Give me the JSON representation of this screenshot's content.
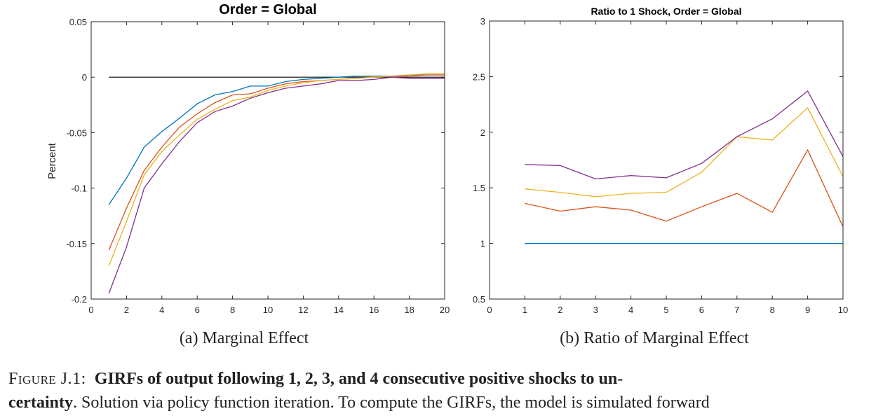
{
  "figure_label": "Figure J.1:",
  "caption_bold": "GIRFs of output following 1, 2, 3, and 4 consecutive positive shocks to un-",
  "caption_bold2": "certainty",
  "caption_rest": ". Solution via policy function iteration. To compute the GIRFs, the model is simulated forward",
  "subcaptions": [
    "(a) Marginal Effect",
    "(b) Ratio of Marginal Effect"
  ],
  "colors": {
    "s1": "#0072BD",
    "s2": "#D95319",
    "s3": "#EDB120",
    "s4": "#7E2F8E",
    "zero": "#000000",
    "axis": "#262626"
  },
  "chart_data": [
    {
      "type": "line",
      "title": "Order = Global",
      "xlabel": "",
      "ylabel": "Percent",
      "xlim": [
        0,
        20
      ],
      "ylim": [
        -0.2,
        0.05
      ],
      "xticks": [
        0,
        2,
        4,
        6,
        8,
        10,
        12,
        14,
        16,
        18,
        20
      ],
      "yticks": [
        -0.2,
        -0.15,
        -0.1,
        -0.05,
        0,
        0.05
      ],
      "ytick_labels": [
        "-0.2",
        "-0.15",
        "-0.1",
        "-0.05",
        "0",
        "0.05"
      ],
      "grid": false,
      "zero_line": {
        "x": [
          1,
          20
        ],
        "y": [
          0,
          0
        ]
      },
      "x": [
        1,
        2,
        3,
        4,
        5,
        6,
        7,
        8,
        9,
        10,
        11,
        12,
        13,
        14,
        15,
        16,
        17,
        18,
        19,
        20
      ],
      "series": [
        {
          "color": "#0072BD",
          "values": [
            -0.115,
            -0.091,
            -0.063,
            -0.049,
            -0.037,
            -0.024,
            -0.016,
            -0.013,
            -0.008,
            -0.008,
            -0.004,
            -0.002,
            -0.001,
            0.0,
            0.001,
            0.001,
            0.001,
            0.002,
            0.002,
            0.002
          ]
        },
        {
          "color": "#D95319",
          "values": [
            -0.156,
            -0.118,
            -0.084,
            -0.063,
            -0.045,
            -0.033,
            -0.023,
            -0.016,
            -0.015,
            -0.01,
            -0.006,
            -0.004,
            -0.003,
            -0.002,
            -0.001,
            0.0,
            0.001,
            0.001,
            0.002,
            0.002
          ]
        },
        {
          "color": "#EDB120",
          "values": [
            -0.17,
            -0.13,
            -0.088,
            -0.067,
            -0.052,
            -0.038,
            -0.029,
            -0.021,
            -0.018,
            -0.012,
            -0.008,
            -0.005,
            -0.003,
            -0.002,
            -0.001,
            0.0,
            0.001,
            0.002,
            0.003,
            0.003
          ]
        },
        {
          "color": "#7E2F8E",
          "values": [
            -0.195,
            -0.153,
            -0.1,
            -0.078,
            -0.058,
            -0.041,
            -0.031,
            -0.026,
            -0.019,
            -0.014,
            -0.01,
            -0.008,
            -0.006,
            -0.003,
            -0.003,
            -0.002,
            0.0,
            -0.001,
            -0.001,
            -0.001
          ]
        }
      ]
    },
    {
      "type": "line",
      "title": "Ratio to 1 Shock, Order = Global",
      "xlabel": "",
      "ylabel": "",
      "xlim": [
        0,
        10
      ],
      "ylim": [
        0.5,
        3
      ],
      "xticks": [
        0,
        1,
        2,
        3,
        4,
        5,
        6,
        7,
        8,
        9,
        10
      ],
      "yticks": [
        0.5,
        1,
        1.5,
        2,
        2.5,
        3
      ],
      "ytick_labels": [
        "0.5",
        "1",
        "1.5",
        "2",
        "2.5",
        "3"
      ],
      "grid": false,
      "x": [
        1,
        2,
        3,
        4,
        5,
        6,
        7,
        8,
        9,
        10
      ],
      "series": [
        {
          "color": "#0072BD",
          "values": [
            1.0,
            1.0,
            1.0,
            1.0,
            1.0,
            1.0,
            1.0,
            1.0,
            1.0,
            1.0
          ]
        },
        {
          "color": "#D95319",
          "values": [
            1.36,
            1.29,
            1.33,
            1.3,
            1.2,
            1.33,
            1.45,
            1.28,
            1.84,
            1.15
          ]
        },
        {
          "color": "#EDB120",
          "values": [
            1.49,
            1.46,
            1.42,
            1.45,
            1.46,
            1.64,
            1.96,
            1.93,
            2.22,
            1.6
          ]
        },
        {
          "color": "#7E2F8E",
          "values": [
            1.71,
            1.7,
            1.58,
            1.61,
            1.59,
            1.72,
            1.96,
            2.12,
            2.37,
            1.78
          ]
        }
      ]
    }
  ]
}
